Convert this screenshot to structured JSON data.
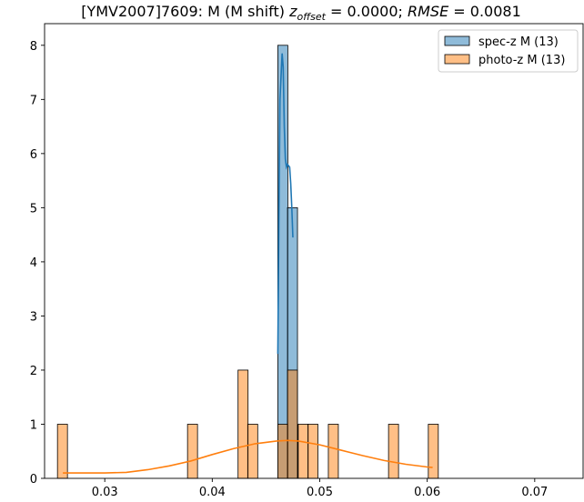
{
  "chart_data": {
    "type": "bar",
    "title": {
      "prefix": "[YMV2007]7609: M (M shift) ",
      "z_sym": "z",
      "z_sub": "offset",
      "z_val": " = 0.0000; ",
      "rmse_sym": "RMSE",
      "rmse_val": " = 0.0081"
    },
    "xlim": [
      0.0244,
      0.0745
    ],
    "ylim": [
      0,
      8.4
    ],
    "x_ticks": [
      0.03,
      0.04,
      0.05,
      0.06,
      0.07
    ],
    "x_tick_labels": [
      "0.03",
      "0.04",
      "0.05",
      "0.06",
      "0.07"
    ],
    "y_ticks": [
      0,
      1,
      2,
      3,
      4,
      5,
      6,
      7,
      8
    ],
    "y_tick_labels": [
      "0",
      "1",
      "2",
      "3",
      "4",
      "5",
      "6",
      "7",
      "8"
    ],
    "bin_width": 0.00093,
    "legend": {
      "position": "top-right"
    },
    "series": [
      {
        "name": "spec-z M (13)",
        "color": "#1f77b4",
        "bins": [
          {
            "x": 0.0461,
            "count": 8
          },
          {
            "x": 0.047,
            "count": 5
          }
        ],
        "kde": [
          [
            0.0461,
            2.3
          ],
          [
            0.0462,
            4.8
          ],
          [
            0.0463,
            7.0
          ],
          [
            0.0465,
            7.85
          ],
          [
            0.0466,
            7.6
          ],
          [
            0.0467,
            6.5
          ],
          [
            0.0468,
            5.9
          ],
          [
            0.0469,
            5.75
          ],
          [
            0.047,
            5.8
          ],
          [
            0.0472,
            5.75
          ],
          [
            0.0473,
            5.45
          ],
          [
            0.0474,
            5.0
          ],
          [
            0.0475,
            4.45
          ]
        ]
      },
      {
        "name": "photo-z M (13)",
        "color": "#ff7f0e",
        "bins": [
          {
            "x": 0.0256,
            "count": 1
          },
          {
            "x": 0.0377,
            "count": 1
          },
          {
            "x": 0.0424,
            "count": 2
          },
          {
            "x": 0.0433,
            "count": 1
          },
          {
            "x": 0.0461,
            "count": 1
          },
          {
            "x": 0.047,
            "count": 2
          },
          {
            "x": 0.048,
            "count": 1
          },
          {
            "x": 0.0489,
            "count": 1
          },
          {
            "x": 0.0508,
            "count": 1
          },
          {
            "x": 0.0564,
            "count": 1
          },
          {
            "x": 0.0601,
            "count": 1
          }
        ],
        "kde": [
          [
            0.0261,
            0.1
          ],
          [
            0.028,
            0.1
          ],
          [
            0.03,
            0.1
          ],
          [
            0.032,
            0.11
          ],
          [
            0.034,
            0.16
          ],
          [
            0.036,
            0.23
          ],
          [
            0.038,
            0.32
          ],
          [
            0.04,
            0.44
          ],
          [
            0.042,
            0.55
          ],
          [
            0.044,
            0.64
          ],
          [
            0.046,
            0.69
          ],
          [
            0.047,
            0.7
          ],
          [
            0.048,
            0.69
          ],
          [
            0.05,
            0.62
          ],
          [
            0.052,
            0.52
          ],
          [
            0.054,
            0.42
          ],
          [
            0.056,
            0.33
          ],
          [
            0.058,
            0.26
          ],
          [
            0.06,
            0.21
          ],
          [
            0.0605,
            0.2
          ]
        ]
      }
    ]
  }
}
